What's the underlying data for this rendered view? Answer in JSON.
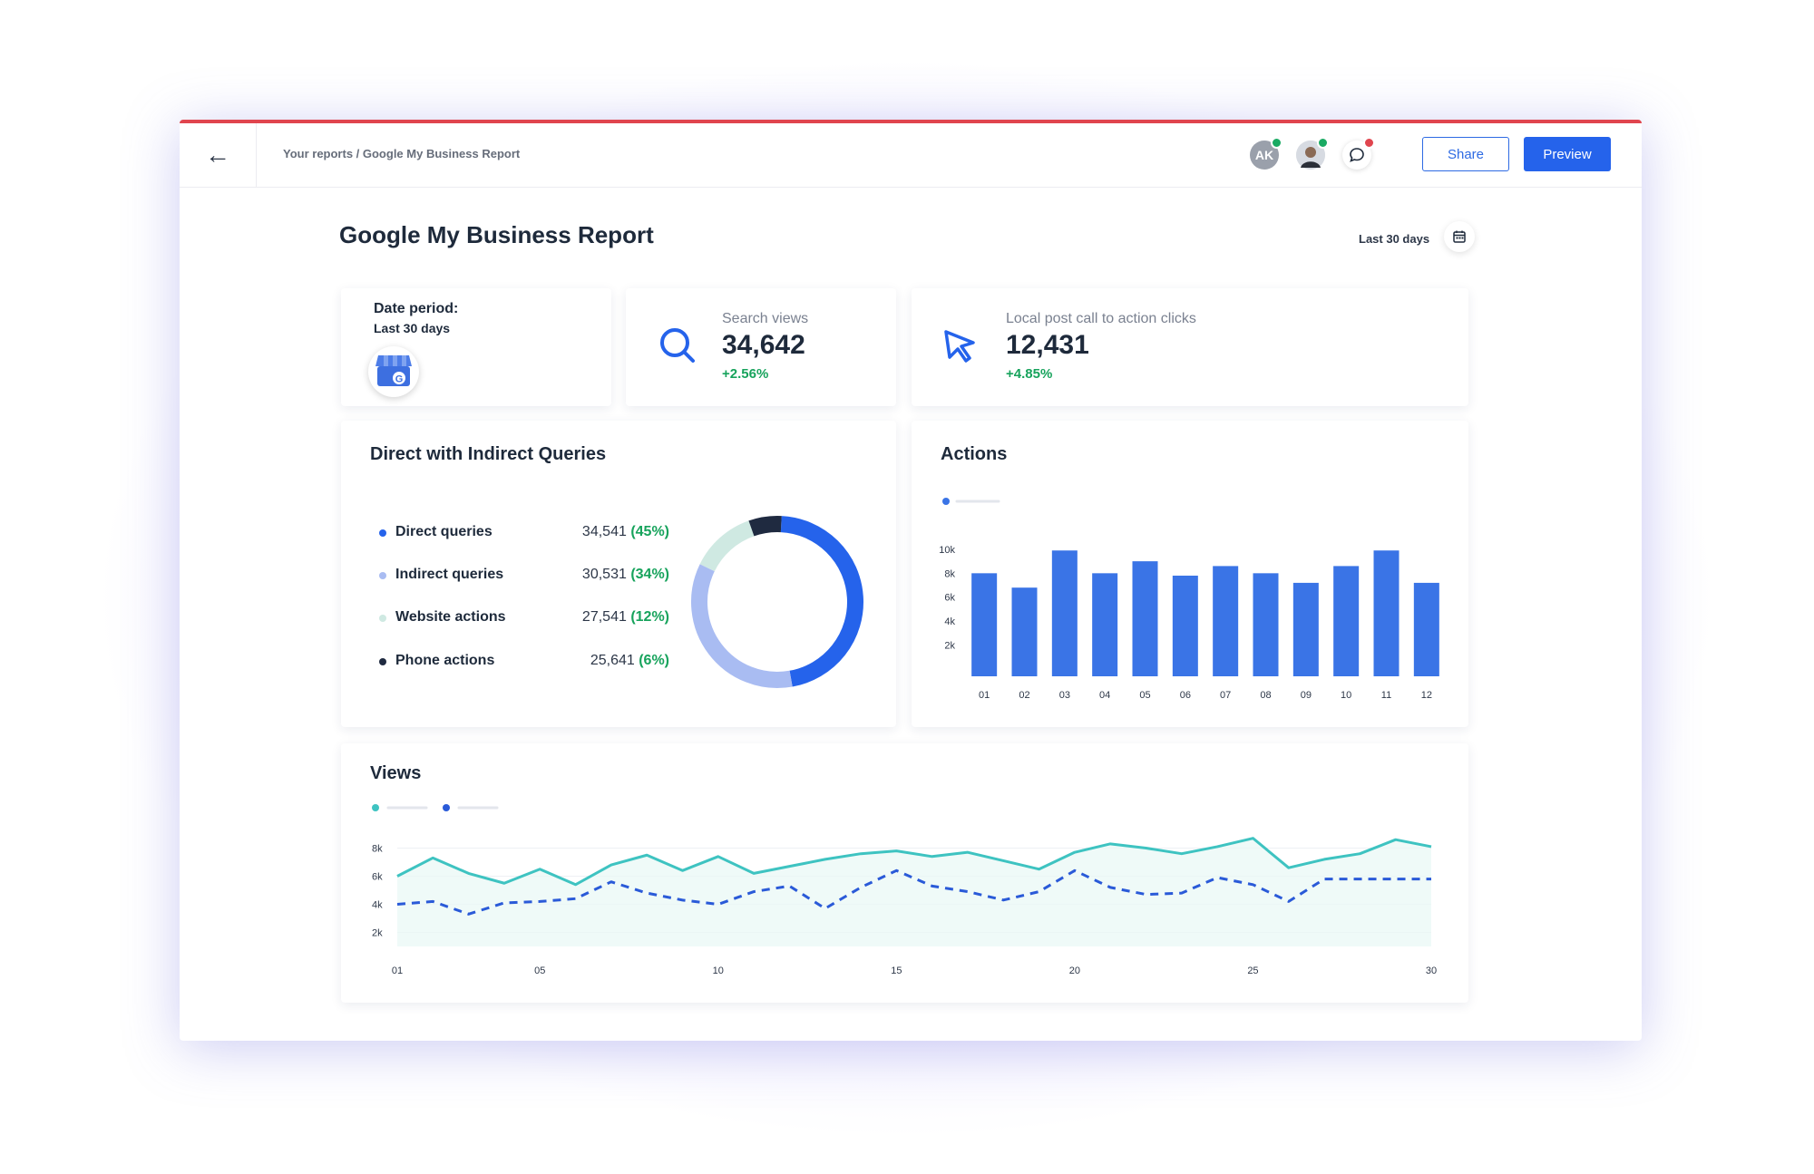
{
  "topbar": {
    "breadcrumb": "Your reports / Google My Business Report",
    "avatar_initials": "AK",
    "share_label": "Share",
    "preview_label": "Preview"
  },
  "report": {
    "title": "Google My Business Report",
    "date_range": "Last 30 days"
  },
  "kpis": {
    "date_period_label": "Date period:",
    "date_period_value": "Last 30 days",
    "search_views": {
      "label": "Search views",
      "value": "34,642",
      "change": "+2.56%"
    },
    "local_post": {
      "label": "Local post call to action clicks",
      "value": "12,431",
      "change": "+4.85%"
    }
  },
  "colors": {
    "accent": "#2563eb",
    "positive": "#17a35c",
    "teal": "#3ec3c1",
    "alert": "#e0454e"
  },
  "chart_data": [
    {
      "type": "pie",
      "title": "Direct with Indirect Queries",
      "series": [
        {
          "name": "Direct queries",
          "value": "34,541",
          "pct": "(45%)",
          "share": 45,
          "color": "#2563eb"
        },
        {
          "name": "Indirect queries",
          "value": "30,531",
          "pct": "(34%)",
          "share": 34,
          "color": "#a9bcf2"
        },
        {
          "name": "Website actions",
          "value": "27,541",
          "pct": "(12%)",
          "share": 12,
          "color": "#cfe9e2"
        },
        {
          "name": "Phone actions",
          "value": "25,641",
          "pct": "(6%)",
          "share": 6,
          "color": "#1f2a40"
        }
      ]
    },
    {
      "type": "bar",
      "title": "Actions",
      "categories": [
        "01",
        "02",
        "03",
        "04",
        "05",
        "06",
        "07",
        "08",
        "09",
        "10",
        "11",
        "12"
      ],
      "values": [
        8.6,
        7.4,
        10.5,
        8.6,
        9.6,
        8.4,
        9.2,
        8.6,
        7.8,
        9.2,
        10.5,
        7.8
      ],
      "yticks": [
        "10k",
        "8k",
        "6k",
        "4k",
        "2k"
      ],
      "ylim": [
        0,
        11.5
      ],
      "color": "#3a74e6",
      "legend": "top-left"
    },
    {
      "type": "line",
      "title": "Views",
      "x": [
        1,
        2,
        3,
        4,
        5,
        6,
        7,
        8,
        9,
        10,
        11,
        12,
        13,
        14,
        15,
        16,
        17,
        18,
        19,
        20,
        21,
        22,
        23,
        24,
        25,
        26,
        27,
        28,
        29,
        30
      ],
      "xticks": [
        "01",
        "05",
        "10",
        "15",
        "20",
        "25",
        "30"
      ],
      "yticks": [
        "8k",
        "6k",
        "4k",
        "2k"
      ],
      "ylim": [
        0,
        9
      ],
      "series": [
        {
          "style": "solid",
          "color": "#3ec3c1",
          "values": [
            6.0,
            7.3,
            6.2,
            5.5,
            6.5,
            5.4,
            6.8,
            7.5,
            6.4,
            7.4,
            6.2,
            6.7,
            7.2,
            7.6,
            7.8,
            7.4,
            7.7,
            7.1,
            6.5,
            7.7,
            8.3,
            8.0,
            7.6,
            8.1,
            8.7,
            6.6,
            7.2,
            7.6,
            8.6,
            8.1
          ]
        },
        {
          "style": "dashed",
          "color": "#2a5ad8",
          "values": [
            4.0,
            4.2,
            3.3,
            4.1,
            4.2,
            4.4,
            5.6,
            4.8,
            4.3,
            4.0,
            4.9,
            5.3,
            3.7,
            5.2,
            6.4,
            5.3,
            4.9,
            4.3,
            4.9,
            6.4,
            5.2,
            4.7,
            4.8,
            5.9,
            5.4,
            4.2,
            5.8,
            5.8,
            5.8,
            5.8
          ]
        }
      ],
      "legend": "top-left"
    }
  ]
}
